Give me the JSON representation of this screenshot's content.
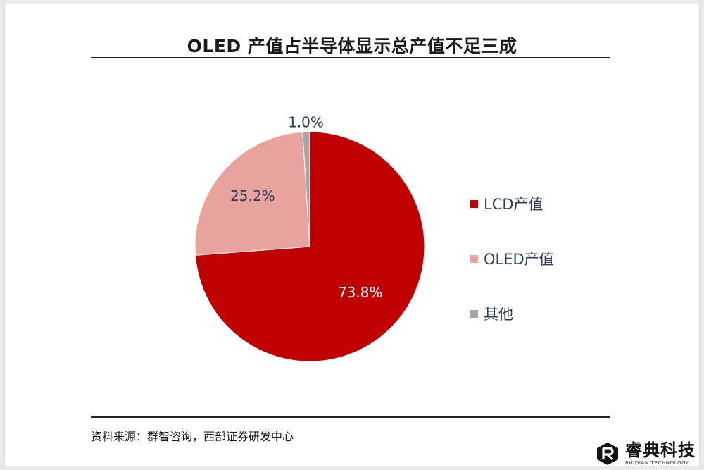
{
  "chart_data": {
    "type": "pie",
    "title": "OLED 产值占半导体显示总产值不足三成",
    "slices": [
      {
        "label": "LCD产值",
        "value": 73.8,
        "display": "73.8%",
        "color": "#c00000"
      },
      {
        "label": "OLED产值",
        "value": 25.2,
        "display": "25.2%",
        "color": "#e9a39f"
      },
      {
        "label": "其他",
        "value": 1.0,
        "display": "1.0%",
        "color": "#a6a6a6"
      }
    ],
    "start": "12 o'clock",
    "direction": "clockwise",
    "legend_position": "right"
  },
  "source": "资料来源：群智咨询，西部证券研发中心",
  "logo": {
    "name_cn": "睿典科技",
    "name_en": "RUIDIAN TECHNOLOGY"
  }
}
